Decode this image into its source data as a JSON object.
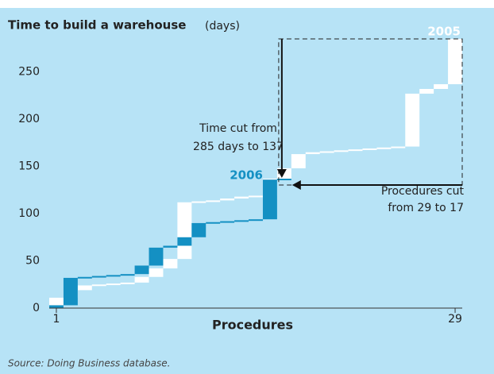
{
  "chart_data": {
    "type": "waterfall",
    "title": "Time to build a warehouse",
    "title_unit": "(days)",
    "x_label": "Procedures",
    "source": "Source: Doing Business database.",
    "xlim": [
      0.5,
      29.5
    ],
    "xticks": [
      1,
      29
    ],
    "ylim": [
      0,
      290
    ],
    "yticks": [
      0,
      50,
      100,
      150,
      200,
      250
    ],
    "grid": false,
    "series": [
      {
        "name": "2005",
        "color": "#ffffff",
        "values": [
          11,
          8,
          5,
          1,
          1,
          1,
          6,
          9,
          10,
          60,
          1,
          1,
          2,
          2,
          1,
          18,
          11,
          15,
          2,
          1,
          1,
          1,
          1,
          1,
          1,
          56,
          5,
          5,
          48
        ]
      },
      {
        "name": "2006",
        "color": "#1490c3",
        "values": [
          3,
          29,
          1,
          1,
          1,
          1,
          9,
          19,
          2,
          9,
          15,
          1,
          1,
          1,
          1,
          42,
          1
        ]
      }
    ],
    "annotations": [
      "Time cut from",
      "285 days to 137",
      "Procedures cut",
      "from 29 to 17"
    ]
  }
}
